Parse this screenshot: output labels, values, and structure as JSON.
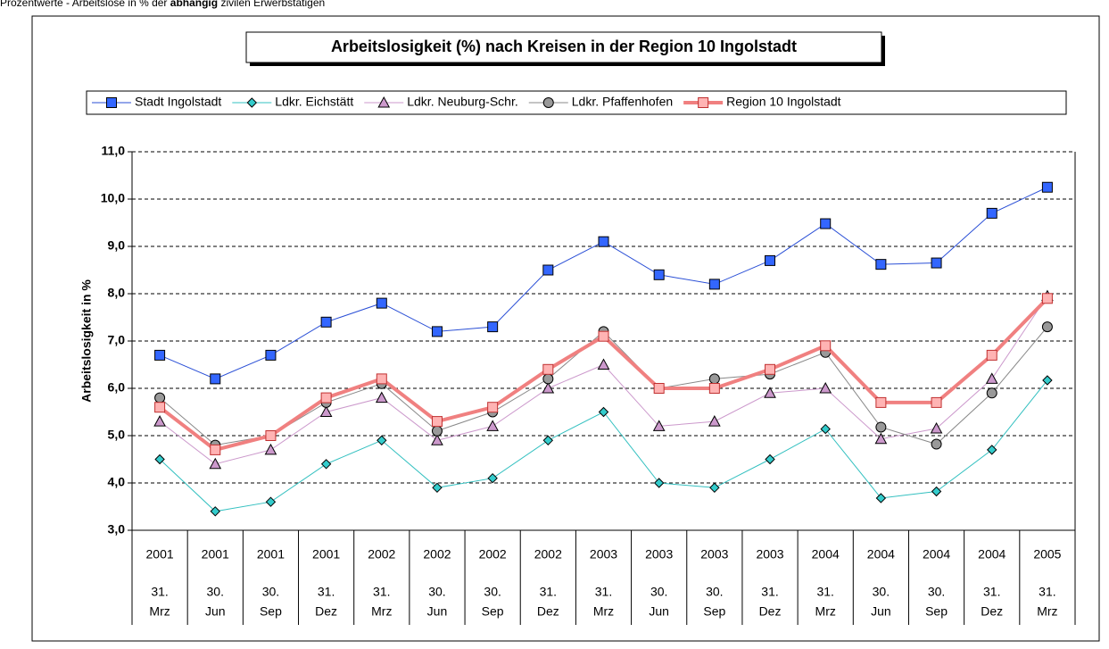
{
  "note": [
    "Prozentwerte - Arbeitslose in % der",
    "abhängig",
    "zivilen Erwerbstätigen"
  ],
  "chart_data": {
    "type": "line",
    "title": "Arbeitslosigkeit (%) nach Kreisen in der Region 10 Ingolstadt",
    "y_label": "Arbeitslosigkeit in %",
    "categories": [
      [
        "2001",
        "31.",
        "Mrz"
      ],
      [
        "2001",
        "30.",
        "Jun"
      ],
      [
        "2001",
        "30.",
        "Sep"
      ],
      [
        "2001",
        "31.",
        "Dez"
      ],
      [
        "2002",
        "31.",
        "Mrz"
      ],
      [
        "2002",
        "30.",
        "Jun"
      ],
      [
        "2002",
        "30.",
        "Sep"
      ],
      [
        "2002",
        "31.",
        "Dez"
      ],
      [
        "2003",
        "31.",
        "Mrz"
      ],
      [
        "2003",
        "30.",
        "Jun"
      ],
      [
        "2003",
        "30.",
        "Sep"
      ],
      [
        "2003",
        "31.",
        "Dez"
      ],
      [
        "2004",
        "31.",
        "Mrz"
      ],
      [
        "2004",
        "30.",
        "Jun"
      ],
      [
        "2004",
        "30.",
        "Sep"
      ],
      [
        "2004",
        "31.",
        "Dez"
      ],
      [
        "2005",
        "31.",
        "Mrz"
      ]
    ],
    "ylim": [
      3,
      11
    ],
    "yticks": [
      {
        "value": 3,
        "label": "3,0"
      },
      {
        "value": 4,
        "label": "4,0"
      },
      {
        "value": 5,
        "label": "5,0"
      },
      {
        "value": 6,
        "label": "6,0"
      },
      {
        "value": 7,
        "label": "7,0"
      },
      {
        "value": 8,
        "label": "8,0"
      },
      {
        "value": 9,
        "label": "9,0"
      },
      {
        "value": 10,
        "label": "10,0"
      },
      {
        "value": 11,
        "label": "11,0"
      }
    ],
    "grid": true,
    "legend": "top",
    "series": [
      {
        "name": "Stadt Ingolstadt",
        "color": "#2a4fd6",
        "marker": "square",
        "marker_fill": "#3366ff",
        "line_width": 1,
        "values": [
          6.7,
          6.2,
          6.7,
          7.4,
          7.8,
          7.2,
          7.3,
          8.5,
          9.1,
          8.4,
          8.2,
          8.7,
          9.48,
          8.62,
          8.65,
          9.7,
          10.25
        ]
      },
      {
        "name": "Ldkr. Eichstätt",
        "color": "#33c0c0",
        "marker": "diamond",
        "marker_fill": "#33cccc",
        "line_width": 1,
        "values": [
          4.5,
          3.4,
          3.6,
          4.4,
          4.9,
          3.9,
          4.1,
          4.9,
          5.5,
          4.0,
          3.9,
          4.5,
          5.14,
          3.68,
          3.82,
          4.7,
          6.17
        ]
      },
      {
        "name": "Ldkr. Neuburg-Schr.",
        "color": "#cc99cc",
        "marker": "triangle",
        "marker_fill": "#cc99cc",
        "line_width": 1,
        "values": [
          5.3,
          4.4,
          4.7,
          5.5,
          5.8,
          4.9,
          5.2,
          6.0,
          6.5,
          5.2,
          5.3,
          5.9,
          6.0,
          4.93,
          5.15,
          6.2,
          7.95
        ]
      },
      {
        "name": "Ldkr. Pfaffenhofen",
        "color": "#888888",
        "marker": "circle",
        "marker_fill": "#999999",
        "line_width": 1,
        "values": [
          5.8,
          4.8,
          5.0,
          5.7,
          6.1,
          5.1,
          5.5,
          6.2,
          7.2,
          6.0,
          6.2,
          6.3,
          6.76,
          5.18,
          4.82,
          5.9,
          7.3
        ]
      },
      {
        "name": "Region 10 Ingolstadt",
        "color": "#f08080",
        "marker": "square",
        "marker_fill": "#ffb3b3",
        "line_width": 4,
        "values": [
          5.6,
          4.7,
          5.0,
          5.8,
          6.2,
          5.3,
          5.6,
          6.4,
          7.1,
          6.0,
          6.0,
          6.4,
          6.9,
          5.7,
          5.7,
          6.7,
          7.9
        ]
      }
    ]
  }
}
